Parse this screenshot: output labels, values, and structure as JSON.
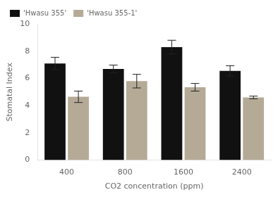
{
  "chart_data": {
    "type": "bar",
    "xlabel": "CO2 concentration (ppm)",
    "ylabel": "Stomatal Index",
    "categories": [
      "400",
      "800",
      "1600",
      "2400"
    ],
    "series": [
      {
        "name": "'Hwasu 355'",
        "color": "#111111",
        "values": [
          7.1,
          6.7,
          8.3,
          6.55
        ],
        "errors": [
          0.45,
          0.28,
          0.5,
          0.38
        ]
      },
      {
        "name": "'Hwasu 355-1'",
        "color": "#b5aa96",
        "values": [
          4.65,
          5.8,
          5.35,
          4.6
        ],
        "errors": [
          0.42,
          0.5,
          0.28,
          0.1
        ]
      }
    ],
    "ylim": [
      0,
      10
    ],
    "yticks": [
      0,
      2,
      4,
      6,
      8,
      10
    ],
    "grid": false,
    "legend": "upper left"
  }
}
